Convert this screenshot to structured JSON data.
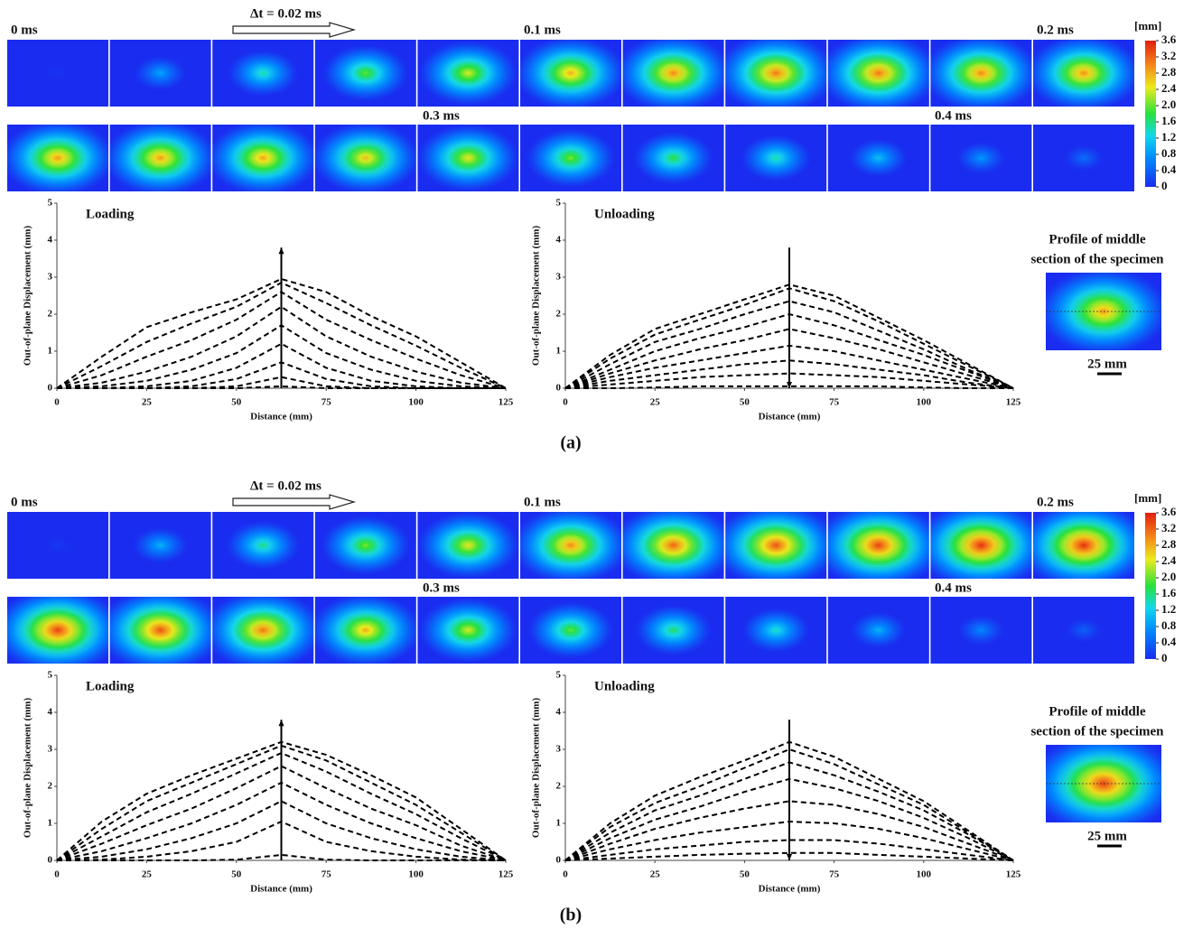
{
  "panels": [
    {
      "label": "(a)",
      "time_labels": [
        "0 ms",
        "0.1 ms",
        "0.2 ms",
        "0.3 ms",
        "0.4 ms"
      ],
      "delta_t": "Δt = 0.02 ms",
      "frames": [
        [
          0.05,
          0.9,
          1.5,
          2.0,
          2.4,
          2.8,
          3.0,
          3.1,
          3.1,
          3.0,
          2.95
        ],
        [
          2.9,
          2.9,
          2.85,
          2.7,
          2.5,
          2.1,
          1.8,
          1.5,
          1.1,
          0.8,
          0.5
        ]
      ],
      "colorbar": {
        "unit": "[mm]",
        "lim": [
          0,
          3.6
        ],
        "ticks": [
          0,
          0.4,
          0.8,
          1.2,
          1.6,
          {
            "value": 2,
            "label": "2.0"
          },
          2.4,
          2.8,
          3.2,
          3.6
        ]
      },
      "profile": {
        "title_lines": [
          "Profile of middle",
          "section of the specimen"
        ],
        "scale": "25 mm"
      }
    },
    {
      "label": "(b)",
      "time_labels": [
        "0 ms",
        "0.1 ms",
        "0.2 ms",
        "0.3 ms",
        "0.4 ms"
      ],
      "delta_t": "Δt = 0.02 ms",
      "frames": [
        [
          0.1,
          1.0,
          1.6,
          2.1,
          2.5,
          3.0,
          3.2,
          3.3,
          3.4,
          3.5,
          3.5
        ],
        [
          3.4,
          3.3,
          3.1,
          2.8,
          2.4,
          2.0,
          1.7,
          1.4,
          1.0,
          0.7,
          0.4
        ]
      ],
      "colorbar": {
        "unit": "[mm]",
        "lim": [
          0,
          3.6
        ],
        "ticks": [
          0,
          0.4,
          0.8,
          1.2,
          1.6,
          {
            "value": 2,
            "label": "2.0"
          },
          2.4,
          2.8,
          3.2,
          3.6
        ]
      },
      "profile": {
        "title_lines": [
          "Profile of middle",
          "section of the specimen"
        ],
        "scale": "25 mm"
      }
    }
  ],
  "chart_data": [
    {
      "type": "line",
      "title": "Loading",
      "xlabel": "Distance (mm)",
      "ylabel": "Out-of-plane Displacement (mm)",
      "color": "#000000",
      "line_style": "dashed",
      "arrow": "up",
      "xlim": [
        0,
        125
      ],
      "ylim": [
        0,
        5
      ],
      "xticks": [
        0,
        25,
        50,
        75,
        100,
        125
      ],
      "yticks": [
        0,
        1,
        2,
        3,
        4,
        5
      ],
      "x": [
        0,
        12.5,
        25,
        37.5,
        50,
        62.5,
        75,
        87.5,
        100,
        112.5,
        125
      ],
      "series": [
        {
          "values": [
            0,
            0,
            0,
            0,
            0,
            0.05,
            0,
            0,
            0,
            0,
            0
          ]
        },
        {
          "values": [
            0,
            0,
            0,
            0,
            0.05,
            0.3,
            0.05,
            0,
            0,
            0,
            0
          ]
        },
        {
          "values": [
            0,
            0,
            0,
            0.05,
            0.25,
            0.7,
            0.25,
            0.05,
            0,
            0,
            0
          ]
        },
        {
          "values": [
            0,
            0,
            0.05,
            0.2,
            0.55,
            1.2,
            0.55,
            0.2,
            0.05,
            0,
            0
          ]
        },
        {
          "values": [
            0,
            0.05,
            0.2,
            0.5,
            0.95,
            1.7,
            0.95,
            0.5,
            0.2,
            0.05,
            0
          ]
        },
        {
          "values": [
            0,
            0.15,
            0.45,
            0.85,
            1.4,
            2.2,
            1.4,
            0.85,
            0.45,
            0.15,
            0
          ]
        },
        {
          "values": [
            0,
            0.35,
            0.85,
            1.3,
            1.85,
            2.6,
            1.85,
            1.3,
            0.8,
            0.35,
            0
          ]
        },
        {
          "values": [
            0,
            0.6,
            1.25,
            1.75,
            2.2,
            2.85,
            2.3,
            1.7,
            1.15,
            0.55,
            0
          ]
        },
        {
          "values": [
            0,
            0.85,
            1.65,
            2.05,
            2.4,
            2.95,
            2.6,
            1.95,
            1.4,
            0.7,
            0
          ]
        }
      ]
    },
    {
      "type": "line",
      "title": "Unloading",
      "xlabel": "Distance (mm)",
      "ylabel": "Out-of-plane Displacement (mm)",
      "color": "#000000",
      "line_style": "dashed",
      "arrow": "down",
      "xlim": [
        0,
        125
      ],
      "ylim": [
        0,
        5
      ],
      "xticks": [
        0,
        25,
        50,
        75,
        100,
        125
      ],
      "yticks": [
        0,
        1,
        2,
        3,
        4,
        5
      ],
      "x": [
        0,
        12.5,
        25,
        37.5,
        50,
        62.5,
        75,
        87.5,
        100,
        112.5,
        125
      ],
      "series": [
        {
          "values": [
            0,
            0.9,
            1.6,
            2.0,
            2.4,
            2.8,
            2.5,
            1.9,
            1.3,
            0.65,
            0
          ]
        },
        {
          "values": [
            0,
            0.8,
            1.45,
            1.85,
            2.25,
            2.7,
            2.35,
            1.8,
            1.2,
            0.6,
            0
          ]
        },
        {
          "values": [
            0,
            0.65,
            1.25,
            1.6,
            2.0,
            2.35,
            2.05,
            1.55,
            1.05,
            0.5,
            0
          ]
        },
        {
          "values": [
            0,
            0.5,
            1.0,
            1.35,
            1.65,
            2.0,
            1.7,
            1.3,
            0.9,
            0.45,
            0
          ]
        },
        {
          "values": [
            0,
            0.4,
            0.75,
            1.05,
            1.3,
            1.6,
            1.35,
            1.05,
            0.7,
            0.35,
            0
          ]
        },
        {
          "values": [
            0,
            0.3,
            0.55,
            0.75,
            0.95,
            1.15,
            1.0,
            0.75,
            0.5,
            0.25,
            0
          ]
        },
        {
          "values": [
            0,
            0.2,
            0.35,
            0.5,
            0.65,
            0.75,
            0.65,
            0.5,
            0.35,
            0.15,
            0
          ]
        },
        {
          "values": [
            0,
            0.1,
            0.2,
            0.3,
            0.35,
            0.4,
            0.35,
            0.3,
            0.2,
            0.1,
            0
          ]
        },
        {
          "values": [
            0,
            0,
            0.02,
            0.05,
            0.05,
            0.05,
            0.05,
            0.05,
            0.02,
            0,
            0
          ]
        }
      ]
    },
    {
      "type": "line",
      "title": "Loading",
      "xlabel": "Distance (mm)",
      "ylabel": "Out-of-plane Displacement (mm)",
      "color": "#000000",
      "line_style": "dashed",
      "arrow": "up",
      "xlim": [
        0,
        125
      ],
      "ylim": [
        0,
        5
      ],
      "xticks": [
        0,
        25,
        50,
        75,
        100,
        125
      ],
      "yticks": [
        0,
        1,
        2,
        3,
        4,
        5
      ],
      "x": [
        0,
        12.5,
        25,
        37.5,
        50,
        62.5,
        75,
        87.5,
        100,
        112.5,
        125
      ],
      "series": [
        {
          "values": [
            0,
            0,
            0,
            0,
            0.02,
            0.15,
            0.02,
            0,
            0,
            0,
            0
          ]
        },
        {
          "values": [
            0,
            0.02,
            0.1,
            0.25,
            0.5,
            1.05,
            0.5,
            0.25,
            0.1,
            0.02,
            0
          ]
        },
        {
          "values": [
            0,
            0.1,
            0.3,
            0.6,
            1.0,
            1.6,
            1.0,
            0.6,
            0.3,
            0.1,
            0
          ]
        },
        {
          "values": [
            0,
            0.25,
            0.6,
            1.0,
            1.5,
            2.1,
            1.5,
            1.0,
            0.6,
            0.25,
            0
          ]
        },
        {
          "values": [
            0,
            0.45,
            0.95,
            1.4,
            1.95,
            2.55,
            1.95,
            1.4,
            0.95,
            0.4,
            0
          ]
        },
        {
          "values": [
            0,
            0.65,
            1.3,
            1.8,
            2.35,
            2.9,
            2.4,
            1.8,
            1.25,
            0.6,
            0
          ]
        },
        {
          "values": [
            0,
            0.85,
            1.6,
            2.1,
            2.6,
            3.1,
            2.7,
            2.1,
            1.5,
            0.75,
            0
          ]
        },
        {
          "values": [
            0,
            1.05,
            1.8,
            2.3,
            2.75,
            3.2,
            2.85,
            2.3,
            1.7,
            0.85,
            0
          ]
        }
      ]
    },
    {
      "type": "line",
      "title": "Unloading",
      "xlabel": "Distance (mm)",
      "ylabel": "Out-of-plane Displacement (mm)",
      "color": "#000000",
      "line_style": "dashed",
      "arrow": "down",
      "xlim": [
        0,
        125
      ],
      "ylim": [
        0,
        5
      ],
      "xticks": [
        0,
        25,
        50,
        75,
        100,
        125
      ],
      "yticks": [
        0,
        1,
        2,
        3,
        4,
        5
      ],
      "x": [
        0,
        12.5,
        25,
        37.5,
        50,
        62.5,
        75,
        87.5,
        100,
        112.5,
        125
      ],
      "series": [
        {
          "values": [
            0,
            1.0,
            1.75,
            2.25,
            2.7,
            3.2,
            2.8,
            2.2,
            1.6,
            0.8,
            0
          ]
        },
        {
          "values": [
            0,
            0.9,
            1.55,
            2.0,
            2.5,
            3.0,
            2.6,
            2.05,
            1.5,
            0.75,
            0
          ]
        },
        {
          "values": [
            0,
            0.75,
            1.35,
            1.75,
            2.2,
            2.65,
            2.3,
            1.85,
            1.35,
            0.7,
            0
          ]
        },
        {
          "values": [
            0,
            0.6,
            1.1,
            1.45,
            1.85,
            2.2,
            1.95,
            1.6,
            1.15,
            0.6,
            0
          ]
        },
        {
          "values": [
            0,
            0.45,
            0.85,
            1.15,
            1.4,
            1.6,
            1.5,
            1.25,
            0.9,
            0.45,
            0
          ]
        },
        {
          "values": [
            0,
            0.3,
            0.55,
            0.75,
            0.9,
            1.05,
            1.0,
            0.85,
            0.6,
            0.3,
            0
          ]
        },
        {
          "values": [
            0,
            0.15,
            0.3,
            0.4,
            0.5,
            0.55,
            0.55,
            0.45,
            0.3,
            0.15,
            0
          ]
        },
        {
          "values": [
            0,
            0.05,
            0.1,
            0.15,
            0.18,
            0.2,
            0.2,
            0.15,
            0.1,
            0.05,
            0
          ]
        }
      ]
    }
  ]
}
